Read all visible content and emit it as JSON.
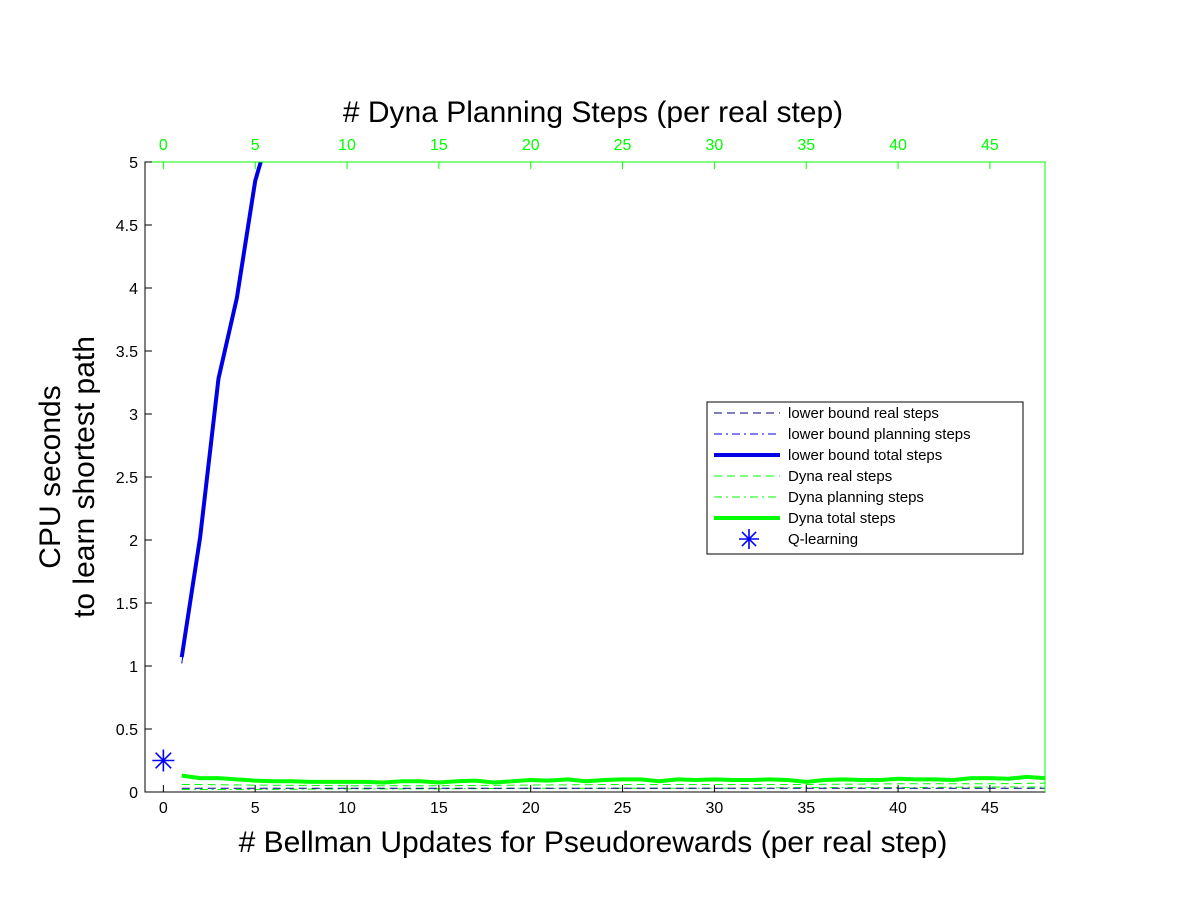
{
  "chart_data": {
    "type": "line",
    "title": "",
    "xlabel": "# Bellman Updates for Pseudorewards (per real step)",
    "ylabel_lines": [
      "CPU seconds",
      "to learn shortest path"
    ],
    "top_xlabel": "# Dyna Planning Steps (per real step)",
    "xlim": [
      -1,
      48
    ],
    "ylim": [
      0,
      5
    ],
    "x_ticks": [
      "0",
      "5",
      "10",
      "15",
      "20",
      "25",
      "30",
      "35",
      "40",
      "45"
    ],
    "y_ticks": [
      "0",
      "0.5",
      "1",
      "1.5",
      "2",
      "2.5",
      "3",
      "3.5",
      "4",
      "4.5",
      "5"
    ],
    "top_x_ticks": [
      "0",
      "5",
      "10",
      "15",
      "20",
      "25",
      "30",
      "35",
      "40",
      "45"
    ],
    "grid": false,
    "legend_position": "right",
    "colors": {
      "lower_bound": "#0000e6",
      "dyna": "#00ff00",
      "dark": "#000080",
      "q_learning": "#0000ff",
      "top_axis": "#00ff00"
    },
    "series": [
      {
        "name": "lower bound real steps",
        "style": "dashed",
        "color": "#000080",
        "x": [
          1,
          5,
          10,
          15,
          20,
          25,
          30,
          35,
          40,
          45,
          48
        ],
        "y": [
          0.03,
          0.03,
          0.03,
          0.03,
          0.03,
          0.03,
          0.03,
          0.03,
          0.03,
          0.03,
          0.03
        ]
      },
      {
        "name": "lower bound planning steps",
        "style": "dashdot",
        "color": "#0000e6",
        "x": [
          1,
          2,
          3,
          4,
          5,
          5.3
        ],
        "y": [
          1.02,
          1.98,
          3.25,
          3.88,
          4.82,
          5.0
        ]
      },
      {
        "name": "lower bound total steps",
        "style": "solid-thick",
        "color": "#0000e6",
        "x": [
          1,
          2,
          3,
          4,
          5,
          5.3
        ],
        "y": [
          1.07,
          2.02,
          3.28,
          3.92,
          4.85,
          5.0
        ]
      },
      {
        "name": "Dyna real steps",
        "style": "dashed",
        "color": "#00ff00",
        "x": [
          1,
          5,
          10,
          15,
          20,
          25,
          30,
          35,
          40,
          45,
          48
        ],
        "y": [
          0.06,
          0.055,
          0.05,
          0.05,
          0.055,
          0.06,
          0.06,
          0.06,
          0.065,
          0.065,
          0.07
        ]
      },
      {
        "name": "Dyna planning steps",
        "style": "dashdot",
        "color": "#00ff00",
        "x": [
          1,
          5,
          10,
          15,
          20,
          25,
          30,
          35,
          40,
          45,
          48
        ],
        "y": [
          0.02,
          0.02,
          0.025,
          0.025,
          0.03,
          0.03,
          0.03,
          0.035,
          0.035,
          0.04,
          0.04
        ]
      },
      {
        "name": "Dyna total steps",
        "style": "solid-thick",
        "color": "#00ff00",
        "x": [
          1,
          2,
          3,
          4,
          5,
          6,
          7,
          8,
          9,
          10,
          11,
          12,
          13,
          14,
          15,
          16,
          17,
          18,
          19,
          20,
          21,
          22,
          23,
          24,
          25,
          26,
          27,
          28,
          29,
          30,
          31,
          32,
          33,
          34,
          35,
          36,
          37,
          38,
          39,
          40,
          41,
          42,
          43,
          44,
          45,
          46,
          47,
          48
        ],
        "y": [
          0.13,
          0.11,
          0.11,
          0.1,
          0.09,
          0.085,
          0.085,
          0.08,
          0.08,
          0.08,
          0.08,
          0.075,
          0.085,
          0.085,
          0.075,
          0.085,
          0.09,
          0.075,
          0.085,
          0.095,
          0.09,
          0.1,
          0.085,
          0.095,
          0.1,
          0.1,
          0.085,
          0.1,
          0.095,
          0.1,
          0.095,
          0.095,
          0.1,
          0.095,
          0.08,
          0.095,
          0.1,
          0.095,
          0.095,
          0.105,
          0.1,
          0.1,
          0.095,
          0.11,
          0.11,
          0.105,
          0.12,
          0.11
        ]
      }
    ],
    "markers": [
      {
        "name": "Q-learning",
        "symbol": "asterisk",
        "color": "#0000ff",
        "x": 0,
        "y": 0.25
      }
    ]
  }
}
